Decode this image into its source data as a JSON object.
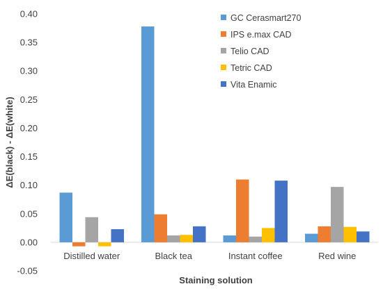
{
  "chart_data": {
    "type": "bar",
    "categories": [
      "Distilled water",
      "Black tea",
      "Instant coffee",
      "Red wine"
    ],
    "series": [
      {
        "name": "GC Cerasmart270",
        "color": "#5B9BD5",
        "values": [
          0.087,
          0.378,
          0.012,
          0.015
        ]
      },
      {
        "name": "IPS e.max CAD",
        "color": "#ED7D31",
        "values": [
          -0.007,
          0.049,
          0.11,
          0.028
        ]
      },
      {
        "name": "Telio CAD",
        "color": "#A5A5A5",
        "values": [
          0.044,
          0.012,
          0.01,
          0.097
        ]
      },
      {
        "name": "Tetric CAD",
        "color": "#FFC000",
        "values": [
          -0.007,
          0.013,
          0.025,
          0.027
        ]
      },
      {
        "name": "Vita Enamic",
        "color": "#4472C4",
        "values": [
          0.023,
          0.028,
          0.108,
          0.019
        ]
      }
    ],
    "xlabel": "Staining solution",
    "ylabel": "ΔE(black) - ΔE(white)",
    "ylim": [
      -0.05,
      0.4
    ],
    "ytick_step": 0.05,
    "yticks": [
      "-0.05",
      "0.00",
      "0.05",
      "0.10",
      "0.15",
      "0.20",
      "0.25",
      "0.30",
      "0.35",
      "0.40"
    ],
    "grid": false,
    "legend": "top-right"
  }
}
